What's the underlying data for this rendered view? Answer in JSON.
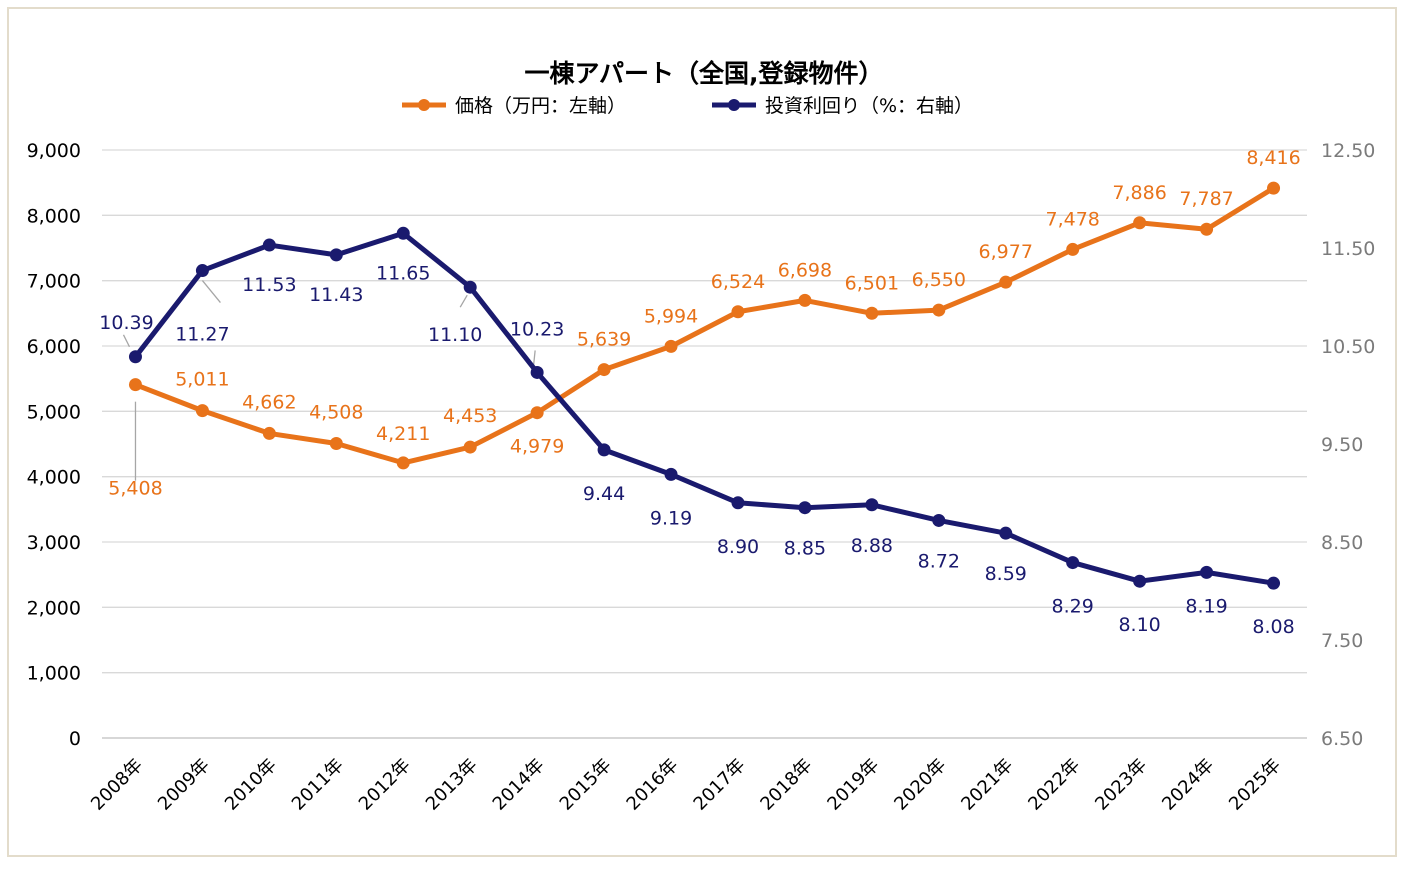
{
  "chart_data": {
    "type": "line",
    "title": "一棟アパート（全国,登録物件）",
    "categories": [
      "2008年",
      "2009年",
      "2010年",
      "2011年",
      "2012年",
      "2013年",
      "2014年",
      "2015年",
      "2016年",
      "2017年",
      "2018年",
      "2019年",
      "2020年",
      "2021年",
      "2022年",
      "2023年",
      "2024年",
      "2025年"
    ],
    "series": [
      {
        "name": "価格（万円：左軸）",
        "axis": "left",
        "color": "#e8731a",
        "values": [
          5408,
          5011,
          4662,
          4508,
          4211,
          4453,
          4979,
          5639,
          5994,
          6524,
          6698,
          6501,
          6550,
          6977,
          7478,
          7886,
          7787,
          8416
        ],
        "labels": [
          "5,408",
          "5,011",
          "4,662",
          "4,508",
          "4,211",
          "4,453",
          "4,979",
          "5,639",
          "5,994",
          "6,524",
          "6,698",
          "6,501",
          "6,550",
          "6,977",
          "7,478",
          "7,886",
          "7,787",
          "8,416"
        ]
      },
      {
        "name": "投資利回り（%：右軸）",
        "axis": "right",
        "color": "#1a1a6e",
        "values": [
          10.39,
          11.27,
          11.53,
          11.43,
          11.65,
          11.1,
          10.23,
          9.44,
          9.19,
          8.9,
          8.85,
          8.88,
          8.72,
          8.59,
          8.29,
          8.1,
          8.19,
          8.08
        ],
        "labels": [
          "10.39",
          "11.27",
          "11.53",
          "11.43",
          "11.65",
          "11.10",
          "10.23",
          "9.44",
          "9.19",
          "8.90",
          "8.85",
          "8.88",
          "8.72",
          "8.59",
          "8.29",
          "8.10",
          "8.19",
          "8.08"
        ]
      }
    ],
    "y_left": {
      "min": 0,
      "max": 9000,
      "ticks": [
        "0",
        "1,000",
        "2,000",
        "3,000",
        "4,000",
        "5,000",
        "6,000",
        "7,000",
        "8,000",
        "9,000"
      ]
    },
    "y_right": {
      "min": 6.5,
      "max": 12.5,
      "ticks": [
        "6.50",
        "7.50",
        "8.50",
        "9.50",
        "10.50",
        "11.50",
        "12.50"
      ]
    },
    "grid": true,
    "legend": "top"
  },
  "colors": {
    "price": "#e8731a",
    "yield": "#1a1a6e",
    "grid": "#d9d9d9",
    "frame": "#e3dccb",
    "right_axis_text": "#7b7b7b",
    "leader_line": "#a6a6a6"
  }
}
